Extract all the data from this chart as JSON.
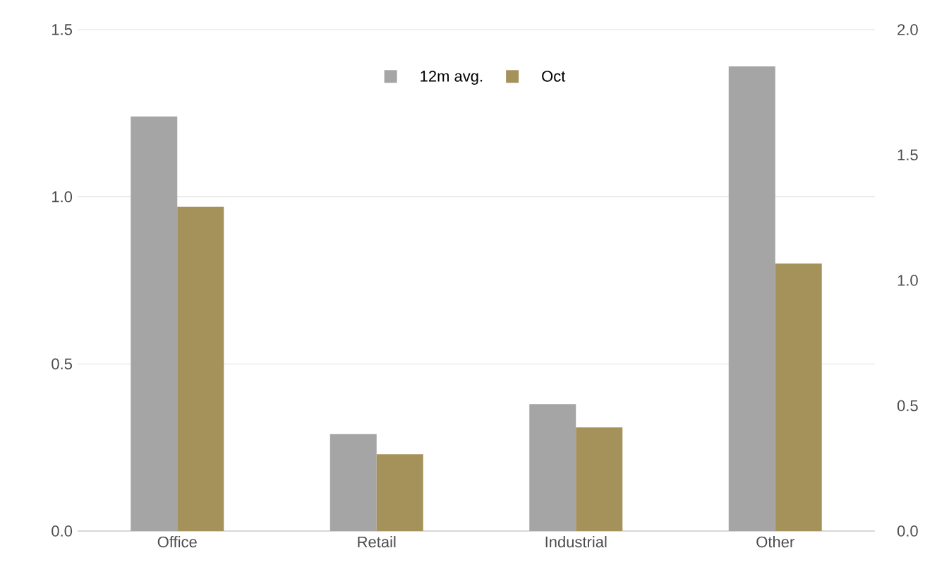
{
  "chart_data": {
    "type": "bar",
    "categories": [
      "Office",
      "Retail",
      "Industrial",
      "Other"
    ],
    "series": [
      {
        "name": "12m avg.",
        "color": "#a5a5a5",
        "values": [
          1.24,
          0.29,
          0.38,
          1.39
        ]
      },
      {
        "name": "Oct",
        "color": "#a5915a",
        "values": [
          0.97,
          0.23,
          0.31,
          0.8
        ]
      }
    ],
    "ylim": [
      0,
      1.5
    ],
    "yticks": [
      {
        "value": 0,
        "label": "0.0"
      },
      {
        "value": 0.5,
        "label": "0.5"
      },
      {
        "value": 1,
        "label": "1.0"
      },
      {
        "value": 1.5,
        "label": "1.5"
      }
    ],
    "y2lim": [
      0,
      2
    ],
    "y2ticks": [
      {
        "value": 0,
        "label": "0.0"
      },
      {
        "value": 0.5,
        "label": "0.5"
      },
      {
        "value": 1,
        "label": "1.0"
      },
      {
        "value": 1.5,
        "label": "1.5"
      },
      {
        "value": 2,
        "label": "2.0"
      }
    ],
    "grid": "y",
    "legend": "top"
  }
}
